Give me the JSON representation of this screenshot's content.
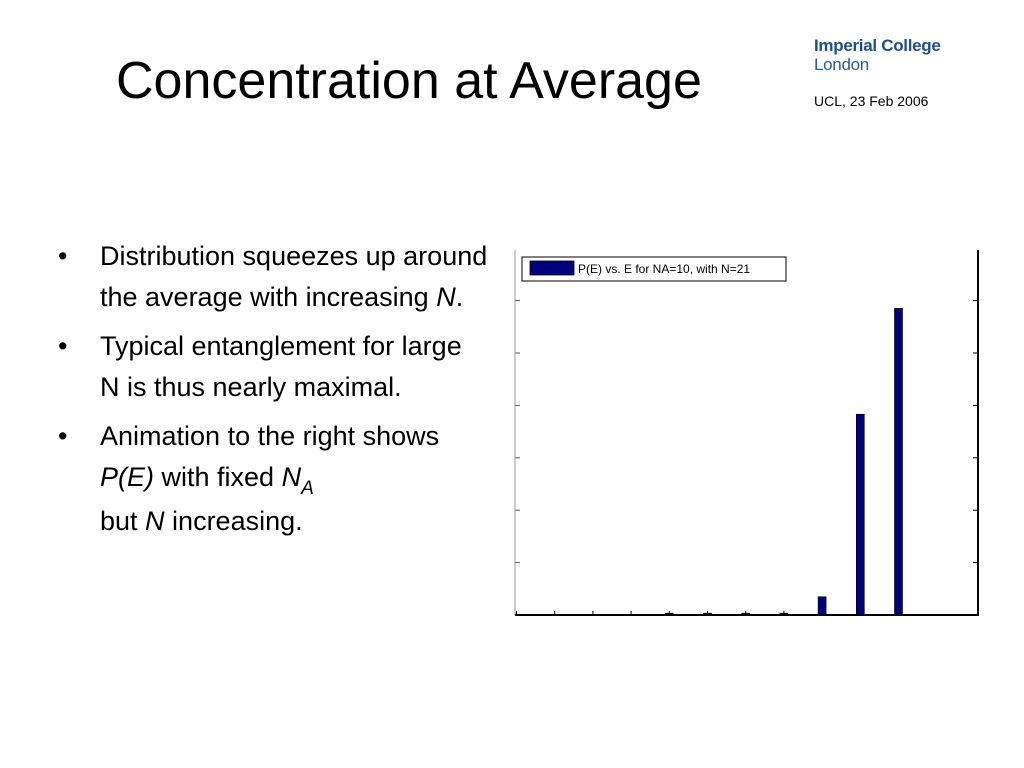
{
  "slide": {
    "title": "Concentration at Average",
    "logo_line1": "Imperial College",
    "logo_line2": "London",
    "event": "UCL, 23 Feb 2006"
  },
  "bullets": [
    {
      "text": "Distribution squeezes up around the average with increasing ",
      "em": "N",
      "tail": "."
    },
    {
      "text": "Typical entanglement for large N is thus nearly maximal."
    },
    {
      "a": "Animation to the right shows ",
      "pe": "P(E)",
      "b": " with fixed ",
      "n": "N",
      "sub": "A",
      "c": "but ",
      "n2": "N",
      "d": " increasing."
    }
  ],
  "chart_data": {
    "type": "bar",
    "legend": "P(E) vs. E for NA=10, with N=21",
    "legend_position": "top-left",
    "bar_color": "#00007f",
    "values": [
      0,
      0,
      0,
      0,
      0.005,
      0.005,
      0.005,
      0.005,
      0.05,
      0.55,
      0.84
    ],
    "ylim": [
      0,
      1
    ],
    "grid": false
  }
}
